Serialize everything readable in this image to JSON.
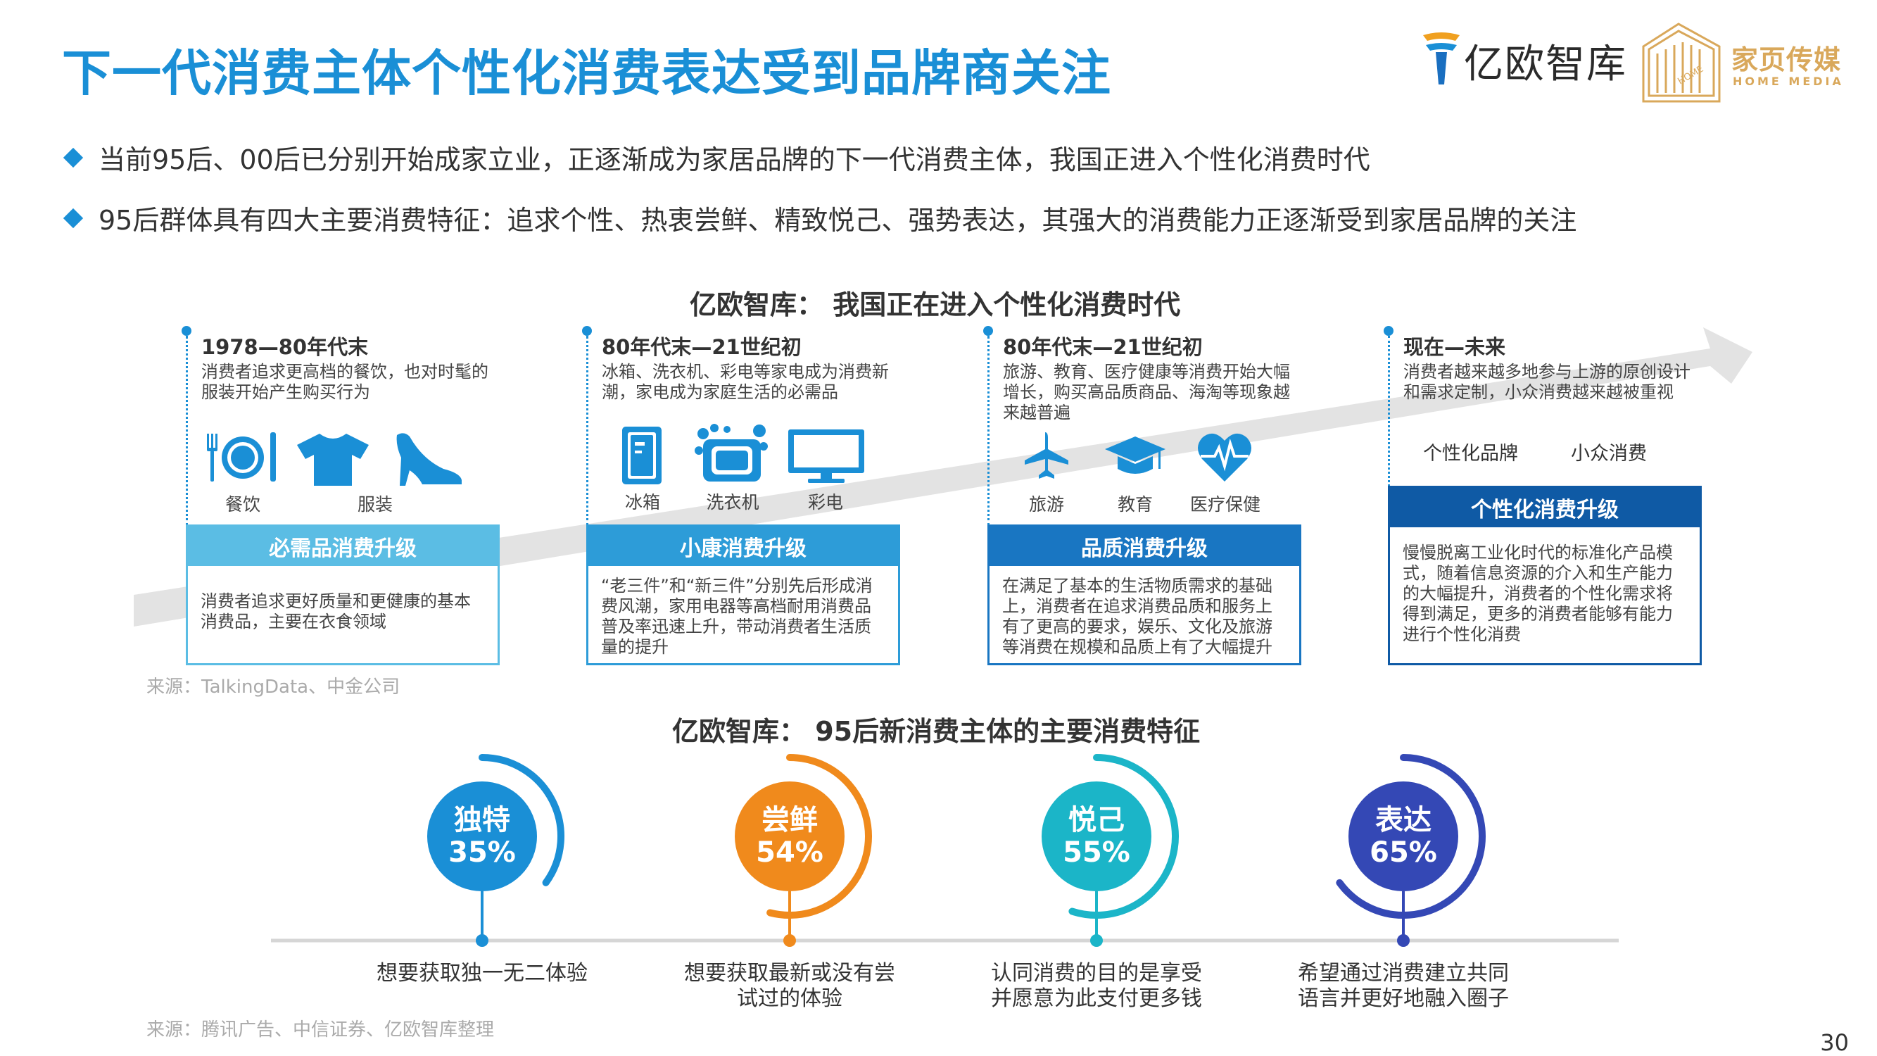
{
  "title": "下一代消费主体个性化消费表达受到品牌商关注",
  "logos": {
    "yiou": "亿欧智库",
    "home_cn": "家页传媒",
    "home_en": "HOME MEDIA",
    "home_mark": "HOME"
  },
  "bullets": [
    "当前95后、00后已分别开始成家立业，正逐渐成为家居品牌的下一代消费主体，我国正进入个性化消费时代",
    "95后群体具有四大主要消费特征：追求个性、热衷尝鲜、精致悦己、强势表达，其强大的消费能力正逐渐受到家居品牌的关注"
  ],
  "section1": {
    "title": "亿欧智库：  我国正在进入个性化消费时代",
    "source": "来源：TalkingData、中金公司",
    "eras": [
      {
        "period": "1978—80年代末",
        "desc": "消费者追求更高档的餐饮，也对时髦的服装开始产生购买行为",
        "icons": [
          "餐饮",
          "服装"
        ],
        "card_title": "必需品消费升级",
        "card_body": "消费者追求更好质量和更健康的基本消费品，主要在衣食领域"
      },
      {
        "period": "80年代末—21世纪初",
        "desc": "冰箱、洗衣机、彩电等家电成为消费新潮，家电成为家庭生活的必需品",
        "icons": [
          "冰箱",
          "洗衣机",
          "彩电"
        ],
        "card_title": "小康消费升级",
        "card_body": "“老三件”和“新三件”分别先后形成消费风潮，家用电器等高档耐用消费品普及率迅速上升，带动消费者生活质量的提升"
      },
      {
        "period": "80年代末—21世纪初",
        "desc": "旅游、教育、医疗健康等消费开始大幅增长，购买高品质商品、海淘等现象越来越普遍",
        "icons": [
          "旅游",
          "教育",
          "医疗保健"
        ],
        "card_title": "品质消费升级",
        "card_body": "在满足了基本的生活物质需求的基础上，消费者在追求消费品质和服务上有了更高的要求，娱乐、文化及旅游等消费在规模和品质上有了大幅提升"
      },
      {
        "period": "现在—未来",
        "desc": "消费者越来越多地参与上游的原创设计和需求定制，小众消费越来越被重视",
        "tags": [
          "个性化品牌",
          "小众消费"
        ],
        "card_title": "个性化消费升级",
        "card_body": "慢慢脱离工业化时代的标准化产品模式，随着信息资源的介入和生产能力的大幅提升，消费者的个性化需求将得到满足，更多的消费者能够有能力进行个性化消费"
      }
    ]
  },
  "section2": {
    "title": "亿欧智库：  95后新消费主体的主要消费特征",
    "source": "来源：腾讯广告、中信证券、亿欧智库整理",
    "features": [
      {
        "name": "独特",
        "pct": "35%",
        "value": 35,
        "desc": [
          "想要获取独一无二体验"
        ],
        "color": "#1a8fd6"
      },
      {
        "name": "尝鲜",
        "pct": "54%",
        "value": 54,
        "desc": [
          "想要获取最新或没有尝",
          "试过的体验"
        ],
        "color": "#f08a1c"
      },
      {
        "name": "悦己",
        "pct": "55%",
        "value": 55,
        "desc": [
          "认同消费的目的是享受",
          "并愿意为此支付更多钱"
        ],
        "color": "#1bb5c8"
      },
      {
        "name": "表达",
        "pct": "65%",
        "value": 65,
        "desc": [
          "希望通过消费建立共同",
          "语言并更好地融入圈子"
        ],
        "color": "#3448b5"
      }
    ]
  },
  "page_number": "30",
  "colors": {
    "accent": "#1a8fd6",
    "card1": "#5bbde4",
    "card2": "#2d9cd8",
    "card3": "#1976c2",
    "card4": "#0f5aa5",
    "logo_gold": "#d9a85b"
  }
}
